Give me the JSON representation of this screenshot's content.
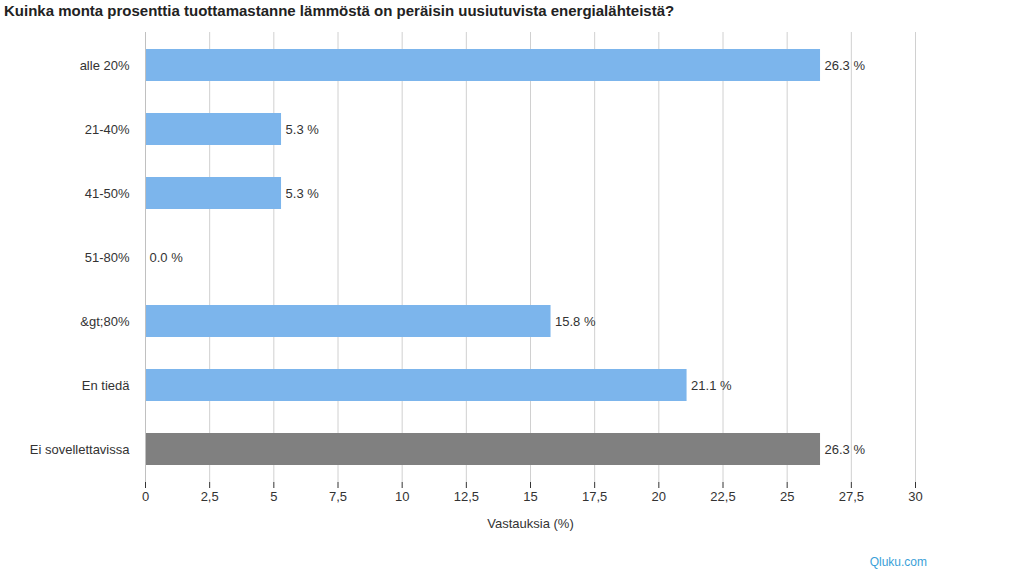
{
  "chart_data": {
    "type": "bar",
    "orientation": "horizontal",
    "title": "Kuinka monta prosenttia tuottamastanne lämmöstä on peräisin uusiutuvista energialähteistä?",
    "x_label": "Vastauksia (%)",
    "source": "Qluku.com",
    "categories": [
      "alle 20%",
      "21-40%",
      "41-50%",
      "51-80%",
      "&gt;80%",
      "En tiedä",
      "Ei sovellettavissa"
    ],
    "values": [
      26.3,
      5.3,
      5.3,
      0.0,
      15.8,
      21.1,
      26.3
    ],
    "value_labels": [
      "26.3 %",
      "5.3 %",
      "5.3 %",
      "0.0 %",
      "15.8 %",
      "21.1 %",
      "26.3 %"
    ],
    "colors": [
      "#7cb5ec",
      "#7cb5ec",
      "#7cb5ec",
      "#7cb5ec",
      "#7cb5ec",
      "#7cb5ec",
      "#808080"
    ],
    "xlim": [
      0,
      30
    ],
    "xticks": [
      0,
      {
        "value": 2.5,
        "label": "2,5"
      },
      5,
      {
        "value": 7.5,
        "label": "7,5"
      },
      10,
      {
        "value": 12.5,
        "label": "12,5"
      },
      15,
      {
        "value": 17.5,
        "label": "17,5"
      },
      20,
      {
        "value": 22.5,
        "label": "22,5"
      },
      25,
      {
        "value": 27.5,
        "label": "27,5"
      },
      30
    ],
    "grid": true,
    "data_labels": true
  }
}
